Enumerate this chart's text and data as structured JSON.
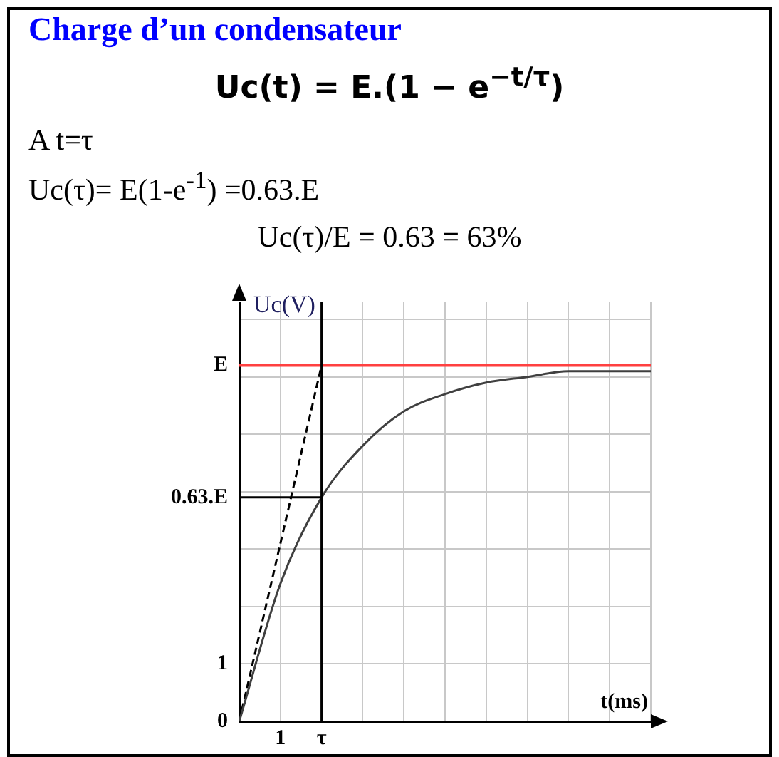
{
  "chart_data": {
    "type": "line",
    "title": "Charge d’un condensateur",
    "annotations": [
      "Uc(t) = E.(1 − e$^{−t/τ}$)",
      "A t=τ",
      "Uc(τ)= E(1-e$^{-1}$) =0.63.E",
      "Uc(τ)/E = 0.63 = 63%"
    ],
    "xlabel": "t(ms)",
    "ylabel": "Uc(V)",
    "categories": [
      null,
      "1",
      "τ",
      null,
      null,
      null,
      null,
      null,
      null,
      null,
      null
    ],
    "series": [
      {
        "color": "#404040",
        "values": [
          0,
          2.4,
          3.9,
          4.8,
          5.4,
          5.7,
          5.9,
          6.0,
          6.1,
          6.1,
          6.1
        ],
        "line_style": "solid"
      },
      {
        "color": "#000000",
        "values": [
          0,
          3.1,
          6.2,
          null,
          null,
          null,
          null,
          null,
          null,
          null,
          null
        ],
        "line_style": "dashed"
      },
      {
        "name": "0.63.E",
        "color": "#000000",
        "values": [
          3.9,
          3.9,
          3.9,
          null,
          null,
          null,
          null,
          null,
          null,
          null,
          null
        ],
        "line_style": "solid"
      }
    ],
    "ylim": [
      0,
      7.3
    ],
    "yticks": [
      0,
      1,
      {
        "value": 2,
        "label": null
      },
      {
        "value": 3,
        "label": null
      },
      {
        "value": 4,
        "label": null
      },
      {
        "value": 5,
        "label": null
      },
      {
        "value": 6,
        "label": null
      },
      {
        "value": 7,
        "label": null
      }
    ],
    "ref_lines": [
      {
        "axis": "y",
        "value": 6.2,
        "label": "E",
        "color": "#ff4040"
      },
      {
        "axis": "x",
        "value": "τ",
        "color": "#000000"
      }
    ],
    "grid": true,
    "marker": "none"
  }
}
